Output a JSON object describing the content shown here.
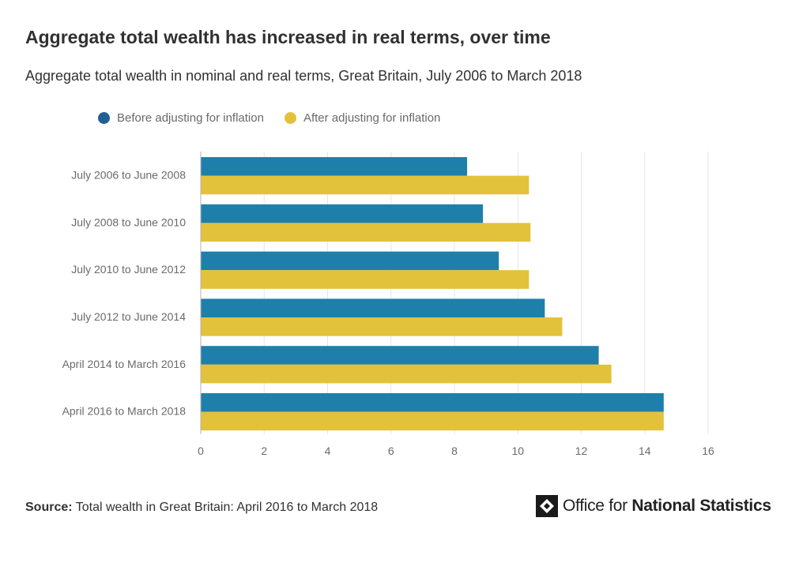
{
  "header": {
    "title": "Aggregate total wealth has increased in real terms, over time",
    "subtitle": "Aggregate total wealth in nominal and real terms, Great Britain, July 2006 to March 2018"
  },
  "legend": {
    "items": [
      {
        "label": "Before adjusting for inflation",
        "color": "#206095"
      },
      {
        "label": "After adjusting for inflation",
        "color": "#e2c23a"
      }
    ]
  },
  "chart_data": {
    "type": "bar",
    "orientation": "horizontal",
    "categories": [
      "July 2006 to June 2008",
      "July 2008 to June 2010",
      "July 2010 to June 2012",
      "July 2012 to June 2014",
      "April 2014 to March 2016",
      "April 2016 to March 2018"
    ],
    "series": [
      {
        "name": "Before adjusting for inflation",
        "color": "#1f7fab",
        "values": [
          8.4,
          8.9,
          9.4,
          10.85,
          12.55,
          14.6
        ]
      },
      {
        "name": "After adjusting for inflation",
        "color": "#e2c23a",
        "values": [
          10.35,
          10.4,
          10.35,
          11.4,
          12.95,
          14.6
        ]
      }
    ],
    "xlim": [
      0,
      16
    ],
    "xticks": [
      0,
      2,
      4,
      6,
      8,
      10,
      12,
      14,
      16
    ],
    "grid": true,
    "legend_position": "top-left"
  },
  "footer": {
    "source_label": "Source:",
    "source_text": "Total wealth in Great Britain: April 2016 to March 2018",
    "logo_text_regular": "Office for ",
    "logo_text_bold": "National Statistics"
  }
}
